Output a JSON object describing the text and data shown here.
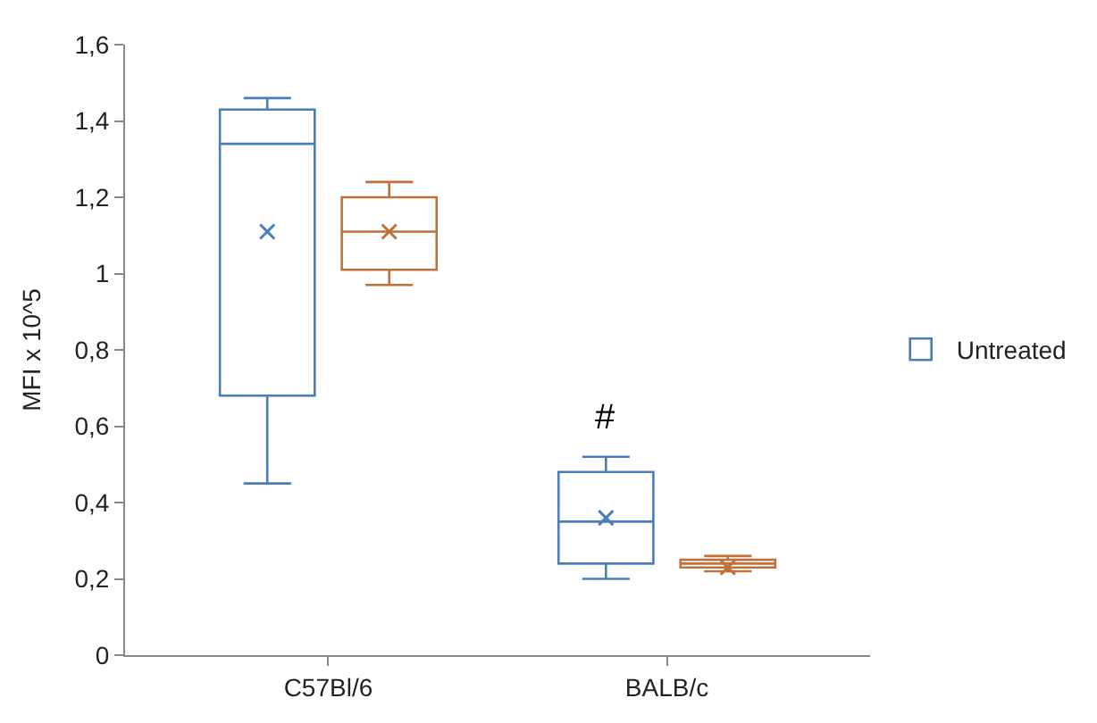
{
  "chart_data": {
    "type": "box",
    "ylabel": "MFI x 10^5",
    "categories": [
      "C57Bl/6",
      "BALB/c"
    ],
    "series": [
      {
        "name": "Untreated",
        "color": "#4a7ebb",
        "boxes": [
          {
            "low": 0.45,
            "q1": 0.68,
            "median": 1.34,
            "q3": 1.43,
            "high": 1.46,
            "mean": 1.11
          },
          {
            "low": 0.2,
            "q1": 0.24,
            "median": 0.35,
            "q3": 0.48,
            "high": 0.52,
            "mean": 0.36
          }
        ]
      },
      {
        "color": "#c0703a",
        "boxes": [
          {
            "low": 0.97,
            "q1": 1.01,
            "median": 1.11,
            "q3": 1.2,
            "high": 1.24,
            "mean": 1.11
          },
          {
            "low": 0.22,
            "q1": 0.23,
            "median": 0.24,
            "q3": 0.25,
            "high": 0.26,
            "mean": 0.23
          }
        ]
      }
    ],
    "ylim": [
      0,
      1.6
    ],
    "yticks": [
      0,
      {
        "value": 0.2,
        "label": "0,2"
      },
      {
        "value": 0.4,
        "label": "0,4"
      },
      {
        "value": 0.6,
        "label": "0,6"
      },
      {
        "value": 0.8,
        "label": "0,8"
      },
      {
        "value": 1,
        "label": "1"
      },
      {
        "value": 1.2,
        "label": "1,2"
      },
      {
        "value": 1.4,
        "label": "1,4"
      },
      {
        "value": 1.6,
        "label": "1,6"
      }
    ],
    "annotations": [
      "#"
    ],
    "legend": "right"
  }
}
